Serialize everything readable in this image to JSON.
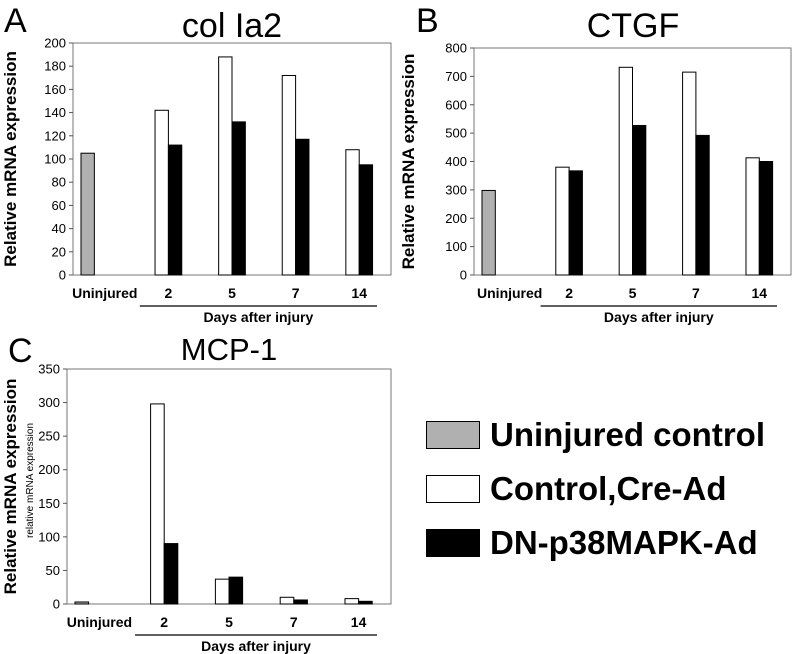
{
  "colors": {
    "uninjured": "#b0b0b0",
    "control": "#ffffff",
    "dn": "#000000"
  },
  "legend": {
    "items": [
      {
        "key": "uninjured",
        "label": "Uninjured control"
      },
      {
        "key": "control",
        "label": "Control,Cre-Ad"
      },
      {
        "key": "dn",
        "label": "DN-p38MAPK-Ad"
      }
    ]
  },
  "chart_data": [
    {
      "panel": "A",
      "type": "bar",
      "title": "col Ia2",
      "ylabel": "Relative mRNA expression",
      "ylabel_secondary": "",
      "xlabel": "Days after injury",
      "uninjured_label": "Uninjured",
      "categories": [
        "2",
        "5",
        "7",
        "14"
      ],
      "uninjured_value": 105,
      "control_values": [
        142,
        188,
        172,
        108
      ],
      "dn_values": [
        112,
        132,
        117,
        95
      ],
      "ylim": [
        0,
        200
      ],
      "yticks": [
        0,
        20,
        40,
        60,
        80,
        100,
        120,
        140,
        160,
        180,
        200
      ]
    },
    {
      "panel": "B",
      "type": "bar",
      "title": "CTGF",
      "ylabel": "Relative mRNA expression",
      "ylabel_secondary": "",
      "xlabel": "Days after injury",
      "uninjured_label": "Uninjured",
      "categories": [
        "2",
        "5",
        "7",
        "14"
      ],
      "uninjured_value": 298,
      "control_values": [
        380,
        732,
        715,
        413
      ],
      "dn_values": [
        367,
        527,
        492,
        400
      ],
      "ylim": [
        0,
        800
      ],
      "yticks": [
        0,
        100,
        200,
        300,
        400,
        500,
        600,
        700,
        800
      ]
    },
    {
      "panel": "C",
      "type": "bar",
      "title": "MCP-1",
      "ylabel": "Relative mRNA expression",
      "ylabel_secondary": "relative mRNA expression",
      "xlabel": "Days after injury",
      "uninjured_label": "Uninjured",
      "categories": [
        "2",
        "5",
        "7",
        "14"
      ],
      "uninjured_value": 3,
      "control_values": [
        298,
        37,
        10,
        8
      ],
      "dn_values": [
        90,
        40,
        6,
        4
      ],
      "ylim": [
        0,
        350
      ],
      "yticks": [
        0,
        50,
        100,
        150,
        200,
        250,
        300,
        350
      ]
    }
  ]
}
